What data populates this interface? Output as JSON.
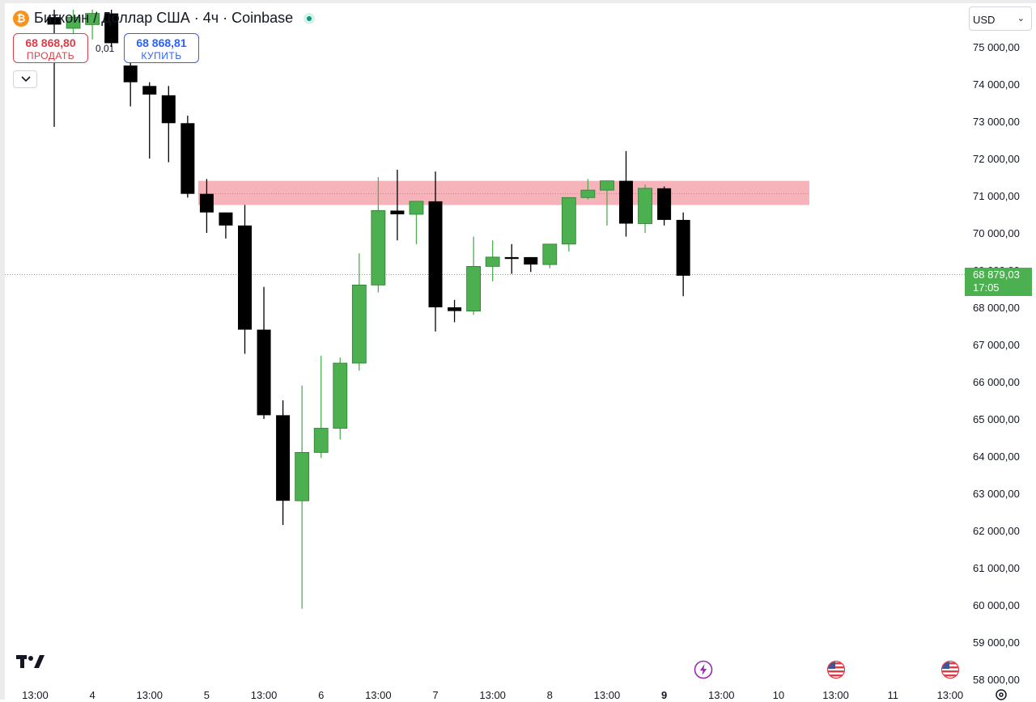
{
  "header": {
    "title": "Биткоин / Доллар США · 4ч · Coinbase",
    "symbol_icon": "bitcoin-icon",
    "status_icon": "market-open-dot-icon",
    "sell": {
      "price": "68 868,80",
      "label": "ПРОДАТЬ"
    },
    "buy": {
      "price": "68 868,81",
      "label": "КУПИТЬ"
    },
    "spread": "0,01",
    "collapse_icon": "chevron-down-icon"
  },
  "currency_selector": {
    "value": "USD",
    "icon": "chevron-down-icon"
  },
  "last_price": {
    "price": "68 879,03",
    "countdown": "17:05",
    "color": "#4caf50"
  },
  "colors": {
    "up": "#4caf50",
    "down": "#000000",
    "zone": "#f4a6ad",
    "grid_text": "#131722"
  },
  "bottom_left_logo": "tradingview-logo-icon",
  "events": [
    {
      "icon": "lightning-event-icon",
      "color": "#9c27b0"
    },
    {
      "icon": "us-flag-event-icon"
    },
    {
      "icon": "us-flag-event-icon"
    }
  ],
  "settings_icon": "gear-icon",
  "chart_data": {
    "type": "candlestick",
    "timeframe": "4ч",
    "y_axis": {
      "range": [
        58000,
        75500
      ],
      "ticks": [
        75000,
        74000,
        73000,
        72000,
        71000,
        70000,
        69000,
        68000,
        67000,
        66000,
        65000,
        64000,
        63000,
        62000,
        61000,
        60000,
        59000,
        58000
      ],
      "tick_labels": [
        "75 000,00",
        "74 000,00",
        "73 000,00",
        "72 000,00",
        "71 000,00",
        "70 000,00",
        "69 000,00",
        "68 000,00",
        "67 000,00",
        "66 000,00",
        "65 000,00",
        "64 000,00",
        "63 000,00",
        "62 000,00",
        "61 000,00",
        "60 000,00",
        "59 000,00",
        "58 000,00"
      ]
    },
    "x_axis": {
      "ticks": [
        {
          "label": "13:00",
          "bar": -1
        },
        {
          "label": "4",
          "bar": 2
        },
        {
          "label": "13:00",
          "bar": 5
        },
        {
          "label": "5",
          "bar": 8
        },
        {
          "label": "13:00",
          "bar": 11
        },
        {
          "label": "6",
          "bar": 14
        },
        {
          "label": "13:00",
          "bar": 17
        },
        {
          "label": "7",
          "bar": 20
        },
        {
          "label": "13:00",
          "bar": 23
        },
        {
          "label": "8",
          "bar": 26
        },
        {
          "label": "13:00",
          "bar": 29
        },
        {
          "label": "9",
          "bar": 32,
          "bold": true
        },
        {
          "label": "13:00",
          "bar": 35
        },
        {
          "label": "10",
          "bar": 38
        },
        {
          "label": "13:00",
          "bar": 41
        },
        {
          "label": "11",
          "bar": 44
        },
        {
          "label": "13:00",
          "bar": 47
        }
      ]
    },
    "candles": [
      {
        "o": 75800,
        "h": 76000,
        "l": 72850,
        "c": 75600
      },
      {
        "o": 75500,
        "h": 76000,
        "l": 75000,
        "c": 75800
      },
      {
        "o": 75600,
        "h": 76000,
        "l": 75200,
        "c": 75900
      },
      {
        "o": 75900,
        "h": 76000,
        "l": 75000,
        "c": 75100
      },
      {
        "o": 74500,
        "h": 75200,
        "l": 73400,
        "c": 74050
      },
      {
        "o": 73950,
        "h": 74050,
        "l": 72000,
        "c": 73720
      },
      {
        "o": 73700,
        "h": 73950,
        "l": 71900,
        "c": 72950
      },
      {
        "o": 72950,
        "h": 73150,
        "l": 70950,
        "c": 71050
      },
      {
        "o": 71050,
        "h": 71450,
        "l": 70000,
        "c": 70550
      },
      {
        "o": 70550,
        "h": 70550,
        "l": 69850,
        "c": 70200
      },
      {
        "o": 70200,
        "h": 70750,
        "l": 66750,
        "c": 67400
      },
      {
        "o": 67400,
        "h": 68550,
        "l": 65000,
        "c": 65100
      },
      {
        "o": 65100,
        "h": 65500,
        "l": 62150,
        "c": 62800
      },
      {
        "o": 62800,
        "h": 65900,
        "l": 59900,
        "c": 64100
      },
      {
        "o": 64100,
        "h": 66700,
        "l": 63950,
        "c": 64750
      },
      {
        "o": 64750,
        "h": 66650,
        "l": 64450,
        "c": 66500
      },
      {
        "o": 66500,
        "h": 69450,
        "l": 66300,
        "c": 68600
      },
      {
        "o": 68600,
        "h": 71500,
        "l": 68400,
        "c": 70600
      },
      {
        "o": 70600,
        "h": 71700,
        "l": 69800,
        "c": 70500
      },
      {
        "o": 70500,
        "h": 70850,
        "l": 69700,
        "c": 70850
      },
      {
        "o": 70850,
        "h": 71650,
        "l": 67350,
        "c": 68000
      },
      {
        "o": 68000,
        "h": 68200,
        "l": 67600,
        "c": 67900
      },
      {
        "o": 67900,
        "h": 69900,
        "l": 67800,
        "c": 69100
      },
      {
        "o": 69100,
        "h": 69800,
        "l": 68700,
        "c": 69350
      },
      {
        "o": 69350,
        "h": 69700,
        "l": 68900,
        "c": 69300
      },
      {
        "o": 69350,
        "h": 69350,
        "l": 68950,
        "c": 69150
      },
      {
        "o": 69150,
        "h": 69700,
        "l": 69050,
        "c": 69700
      },
      {
        "o": 69700,
        "h": 70950,
        "l": 69500,
        "c": 70950
      },
      {
        "o": 70950,
        "h": 71450,
        "l": 70900,
        "c": 71150
      },
      {
        "o": 71150,
        "h": 71400,
        "l": 70200,
        "c": 71400
      },
      {
        "o": 71400,
        "h": 72200,
        "l": 69900,
        "c": 70250
      },
      {
        "o": 70250,
        "h": 71300,
        "l": 70000,
        "c": 71200
      },
      {
        "o": 71200,
        "h": 71250,
        "l": 70200,
        "c": 70350
      },
      {
        "o": 70350,
        "h": 70550,
        "l": 68300,
        "c": 68850
      }
    ],
    "zone": {
      "from_bar": 8,
      "to_bar": 39,
      "low": 70750,
      "high": 71400,
      "mid": 71050
    },
    "last_price_value": 68879.03
  }
}
